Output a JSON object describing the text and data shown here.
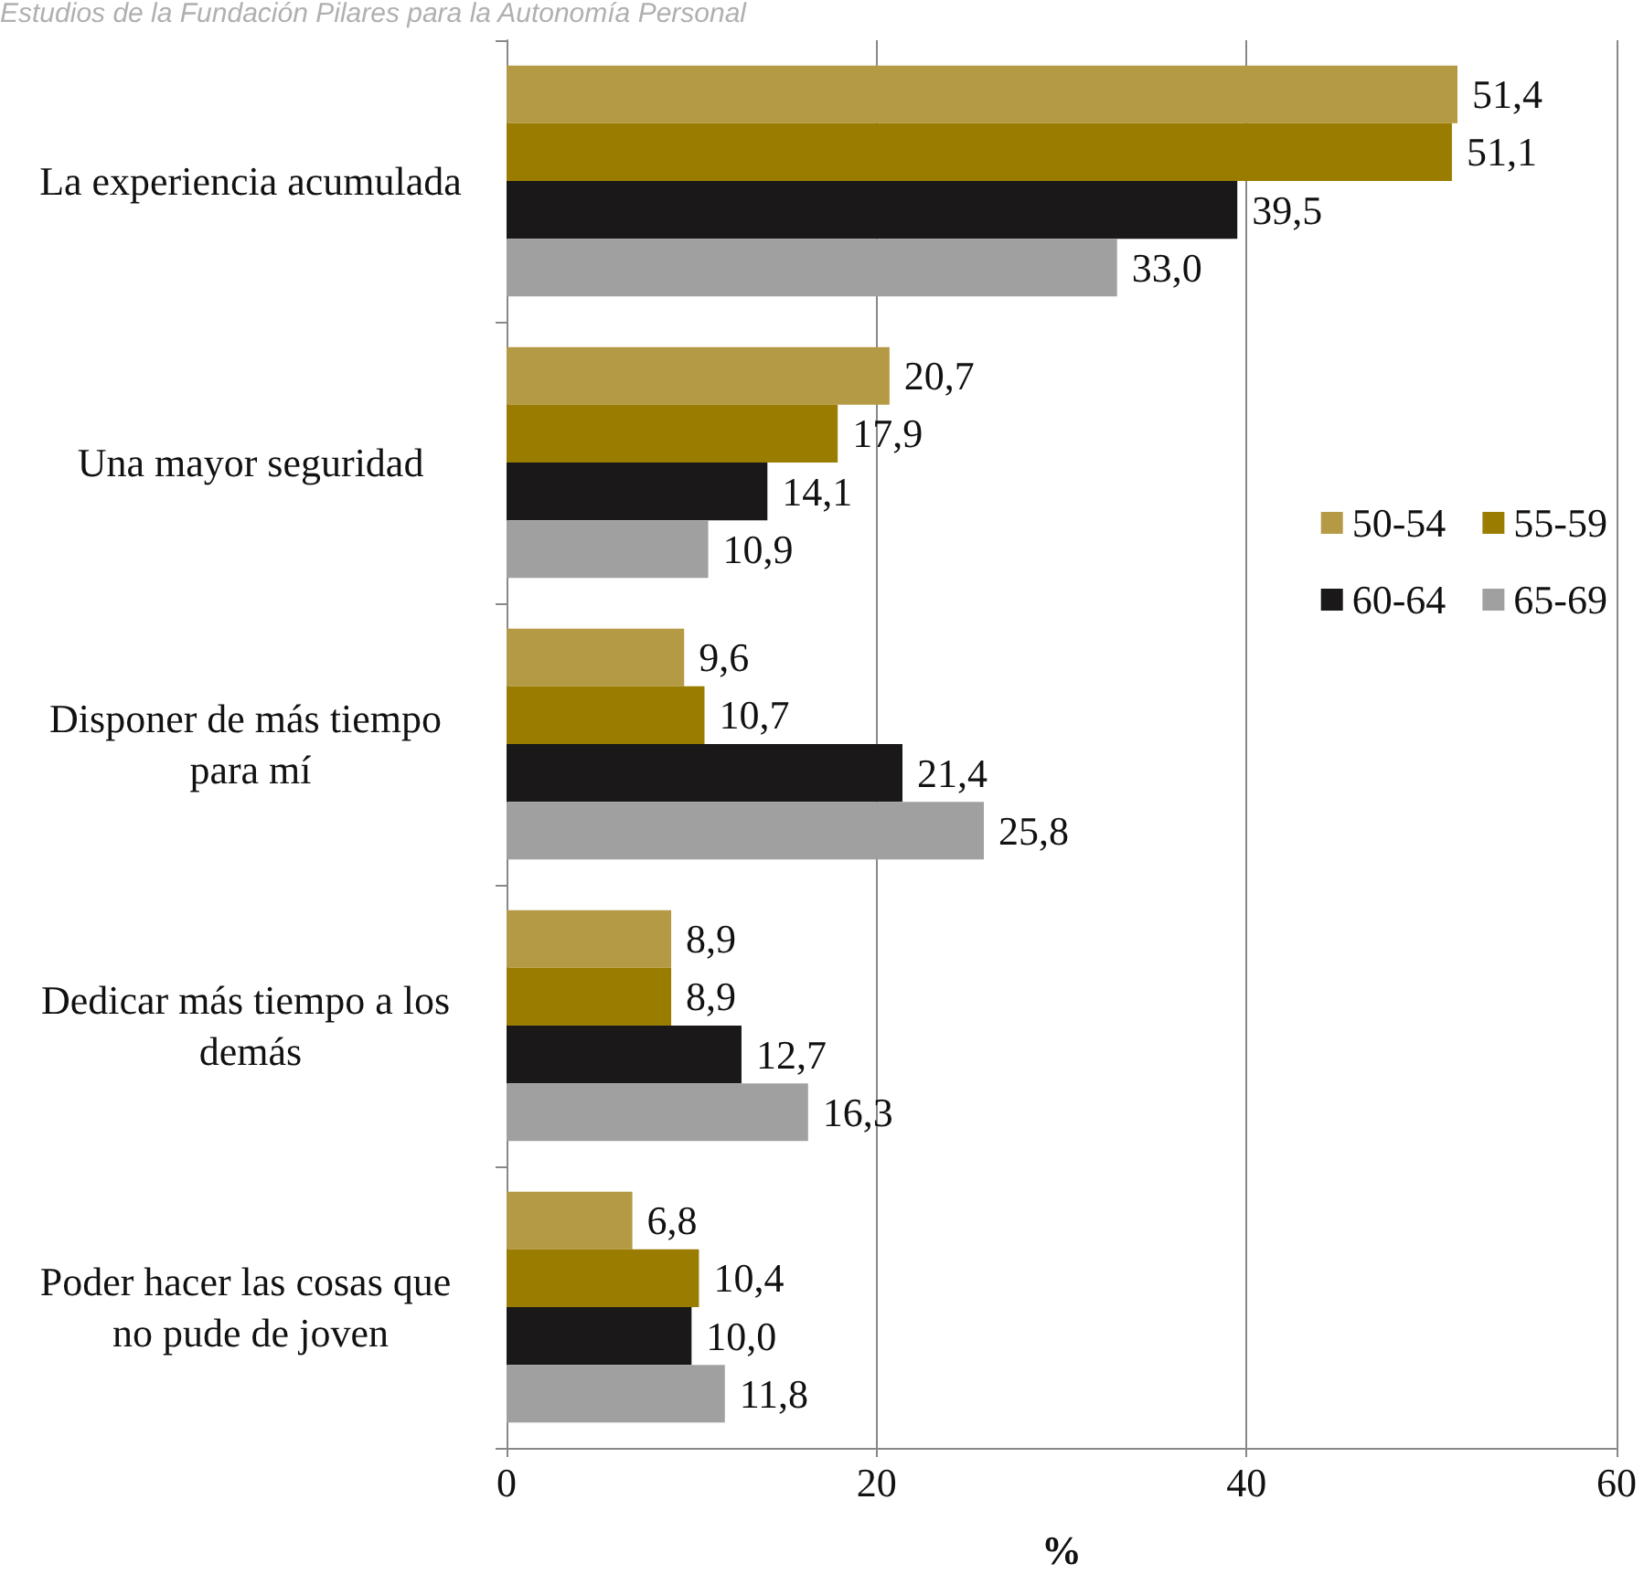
{
  "chart_data": {
    "type": "bar",
    "orientation": "horizontal",
    "xlabel": "%",
    "annotations": [
      "Estudios de la Fundación Pilares para la Autonomía Personal"
    ],
    "categories": [
      "La experiencia acumulada",
      "Una mayor seguridad",
      "Disponer de más tiempo para mí",
      "Dedicar más tiempo a los demás",
      "Poder hacer las cosas que no pude de joven"
    ],
    "series": [
      {
        "name": "50-54",
        "color": "#b59a45",
        "values": [
          51.4,
          20.7,
          9.6,
          8.9,
          6.8
        ],
        "value_labels": [
          "51,4",
          "20,7",
          "9,6",
          "8,9",
          "6,8"
        ]
      },
      {
        "name": "55-59",
        "color": "#9a7d00",
        "values": [
          51.1,
          17.9,
          10.7,
          8.9,
          10.4
        ],
        "value_labels": [
          "51,1",
          "17,9",
          "10,7",
          "8,9",
          "10,4"
        ]
      },
      {
        "name": "60-64",
        "color": "#1a1818",
        "values": [
          39.5,
          14.1,
          21.4,
          12.7,
          10.0
        ],
        "value_labels": [
          "39,5",
          "14,1",
          "21,4",
          "12,7",
          "10,0"
        ]
      },
      {
        "name": "65-69",
        "color": "#a0a0a0",
        "values": [
          33.0,
          10.9,
          25.8,
          16.3,
          11.8
        ],
        "value_labels": [
          "33,0",
          "10,9",
          "25,8",
          "16,3",
          "11,8"
        ]
      }
    ],
    "xlim": [
      0,
      60
    ],
    "xticks": [
      0,
      20,
      40,
      60
    ],
    "grid": "x",
    "legend": "right"
  }
}
